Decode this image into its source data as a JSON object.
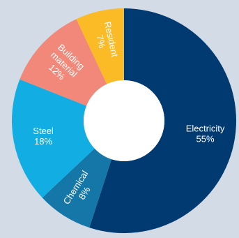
{
  "chart_data": {
    "type": "pie",
    "style": "donut",
    "start_angle_deg": 0,
    "direction": "clockwise",
    "slices": [
      {
        "name": "Electricity",
        "value": 55,
        "display": "55%",
        "color": "#003a70",
        "label_rotation": "horizontal"
      },
      {
        "name": "Chemical",
        "value": 8,
        "display": "8%",
        "color": "#1577a8",
        "label_rotation": "radial"
      },
      {
        "name": "Steel",
        "value": 18,
        "display": "18%",
        "color": "#12aee3",
        "label_rotation": "horizontal"
      },
      {
        "name": "Building material",
        "name_lines": [
          "Building",
          "material"
        ],
        "value": 12,
        "display": "12%",
        "color": "#f2887a",
        "label_rotation": "radial"
      },
      {
        "name": "Resident",
        "value": 7,
        "display": "7%",
        "color": "#fbbb27",
        "label_rotation": "radial"
      }
    ],
    "background": "#d3dbe6",
    "hole_color": "#ffffff"
  }
}
